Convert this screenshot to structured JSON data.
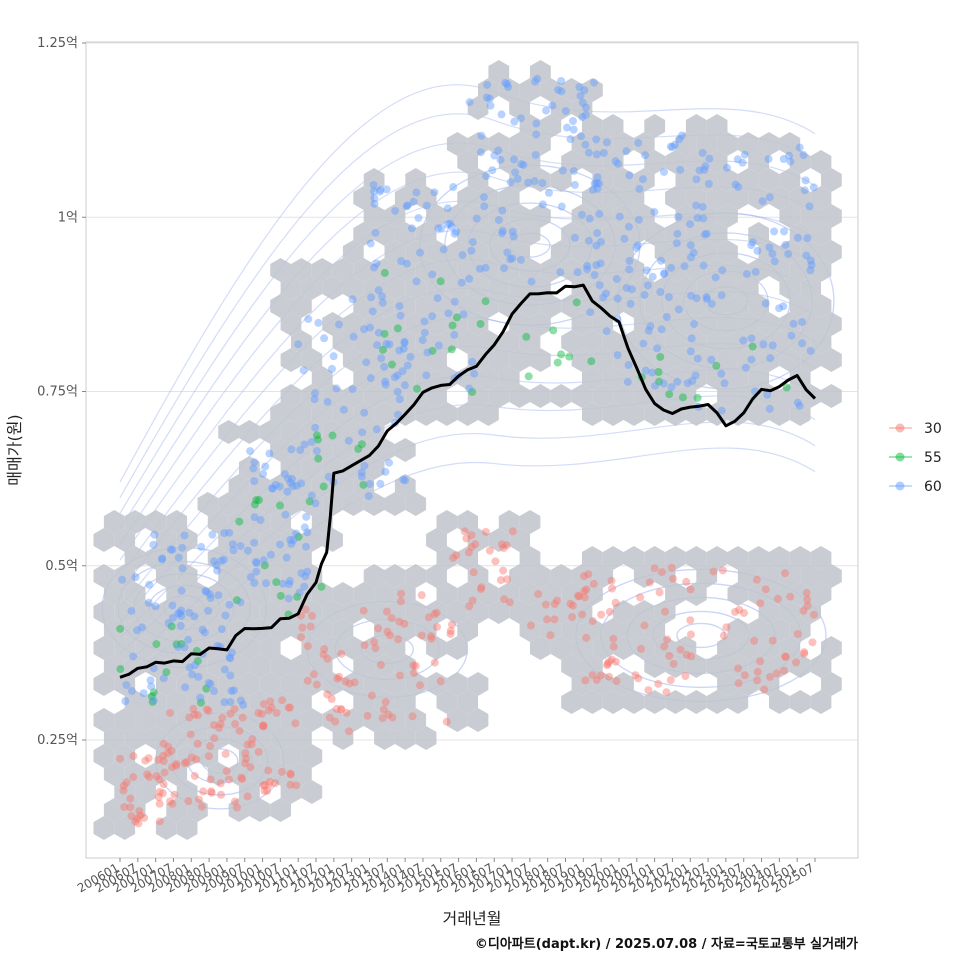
{
  "chart_data": {
    "type": "scatter",
    "title": "",
    "xlabel": "거래년월",
    "ylabel": "매매가(원)",
    "caption": "©디아파트(dapt.kr) / 2025.07.08 / 자료=국토교통부 실거래가",
    "grid": true,
    "legend_position": "right",
    "ylim": [
      0.08,
      1.25
    ],
    "y_ticks": [
      {
        "value": 0.25,
        "label": "0.25억"
      },
      {
        "value": 0.5,
        "label": "0.5억"
      },
      {
        "value": 0.75,
        "label": "0.75억"
      },
      {
        "value": 1.0,
        "label": "1억"
      },
      {
        "value": 1.25,
        "label": "1.25억"
      }
    ],
    "x_ticks": [
      "200601",
      "200607",
      "200701",
      "200707",
      "200801",
      "200807",
      "200901",
      "200907",
      "201001",
      "201007",
      "201101",
      "201107",
      "201201",
      "201207",
      "201301",
      "201307",
      "201401",
      "201407",
      "201501",
      "201507",
      "201601",
      "201607",
      "201701",
      "201707",
      "201801",
      "201807",
      "201901",
      "201907",
      "202001",
      "202007",
      "202101",
      "202107",
      "202201",
      "202207",
      "202301",
      "202307",
      "202401",
      "202407",
      "202501",
      "202507"
    ],
    "series": [
      {
        "name": "30",
        "color": "#F8766D",
        "clusters": [
          {
            "x": [
              2006.0,
              2007.3
            ],
            "y": [
              0.13,
              0.23
            ],
            "n": 30
          },
          {
            "x": [
              2007.2,
              2010.3
            ],
            "y": [
              0.15,
              0.3
            ],
            "n": 70
          },
          {
            "x": [
              2010.0,
              2011.0
            ],
            "y": [
              0.18,
              0.32
            ],
            "n": 20
          },
          {
            "x": [
              2011.0,
              2013.5
            ],
            "y": [
              0.26,
              0.44
            ],
            "n": 40
          },
          {
            "x": [
              2013.5,
              2015.5
            ],
            "y": [
              0.26,
              0.46
            ],
            "n": 30
          },
          {
            "x": [
              2015.3,
              2017.2
            ],
            "y": [
              0.44,
              0.55
            ],
            "n": 25
          },
          {
            "x": [
              2017.5,
              2019.2
            ],
            "y": [
              0.4,
              0.48
            ],
            "n": 15
          },
          {
            "x": [
              2019.0,
              2025.5
            ],
            "y": [
              0.31,
              0.5
            ],
            "n": 90
          }
        ]
      },
      {
        "name": "55",
        "color": "#00BA38",
        "clusters": [
          {
            "x": [
              2006.0,
              2008.6
            ],
            "y": [
              0.3,
              0.42
            ],
            "n": 14
          },
          {
            "x": [
              2009.0,
              2011.8
            ],
            "y": [
              0.4,
              0.6
            ],
            "n": 14
          },
          {
            "x": [
              2011.5,
              2013.0
            ],
            "y": [
              0.6,
              0.72
            ],
            "n": 8
          },
          {
            "x": [
              2013.3,
              2016.3
            ],
            "y": [
              0.74,
              0.93
            ],
            "n": 14
          },
          {
            "x": [
              2017.0,
              2019.5
            ],
            "y": [
              0.76,
              0.9
            ],
            "n": 8
          },
          {
            "x": [
              2019.5,
              2025.0
            ],
            "y": [
              0.74,
              0.82
            ],
            "n": 10
          }
        ]
      },
      {
        "name": "60",
        "color": "#619CFF",
        "clusters": [
          {
            "x": [
              2006.0,
              2009.6
            ],
            "y": [
              0.3,
              0.55
            ],
            "n": 90
          },
          {
            "x": [
              2009.6,
              2011.5
            ],
            "y": [
              0.45,
              0.67
            ],
            "n": 50
          },
          {
            "x": [
              2010.8,
              2014.0
            ],
            "y": [
              0.6,
              0.9
            ],
            "n": 60
          },
          {
            "x": [
              2013.0,
              2016.0
            ],
            "y": [
              0.75,
              1.05
            ],
            "n": 70
          },
          {
            "x": [
              2015.8,
              2019.5
            ],
            "y": [
              0.9,
              1.2
            ],
            "n": 90
          },
          {
            "x": [
              2019.0,
              2022.5
            ],
            "y": [
              0.75,
              1.12
            ],
            "n": 90
          },
          {
            "x": [
              2022.0,
              2025.5
            ],
            "y": [
              0.72,
              1.1
            ],
            "n": 80
          }
        ]
      }
    ],
    "trend_line": {
      "color": "#000000",
      "points": [
        [
          2006.0,
          0.34
        ],
        [
          2006.5,
          0.35
        ],
        [
          2007.0,
          0.36
        ],
        [
          2007.5,
          0.36
        ],
        [
          2008.0,
          0.37
        ],
        [
          2008.5,
          0.38
        ],
        [
          2009.0,
          0.38
        ],
        [
          2009.5,
          0.41
        ],
        [
          2010.0,
          0.41
        ],
        [
          2010.5,
          0.42
        ],
        [
          2011.0,
          0.43
        ],
        [
          2011.5,
          0.48
        ],
        [
          2011.8,
          0.52
        ],
        [
          2012.0,
          0.63
        ],
        [
          2012.5,
          0.64
        ],
        [
          2013.0,
          0.66
        ],
        [
          2013.5,
          0.69
        ],
        [
          2014.0,
          0.72
        ],
        [
          2014.5,
          0.75
        ],
        [
          2015.0,
          0.76
        ],
        [
          2015.5,
          0.77
        ],
        [
          2016.0,
          0.79
        ],
        [
          2016.5,
          0.82
        ],
        [
          2017.0,
          0.86
        ],
        [
          2017.5,
          0.89
        ],
        [
          2018.0,
          0.89
        ],
        [
          2018.5,
          0.9
        ],
        [
          2019.0,
          0.9
        ],
        [
          2019.5,
          0.87
        ],
        [
          2020.0,
          0.85
        ],
        [
          2020.5,
          0.78
        ],
        [
          2021.0,
          0.73
        ],
        [
          2021.5,
          0.72
        ],
        [
          2022.0,
          0.73
        ],
        [
          2022.5,
          0.73
        ],
        [
          2023.0,
          0.7
        ],
        [
          2023.5,
          0.72
        ],
        [
          2024.0,
          0.75
        ],
        [
          2024.5,
          0.76
        ],
        [
          2025.0,
          0.77
        ],
        [
          2025.5,
          0.74
        ]
      ]
    }
  }
}
